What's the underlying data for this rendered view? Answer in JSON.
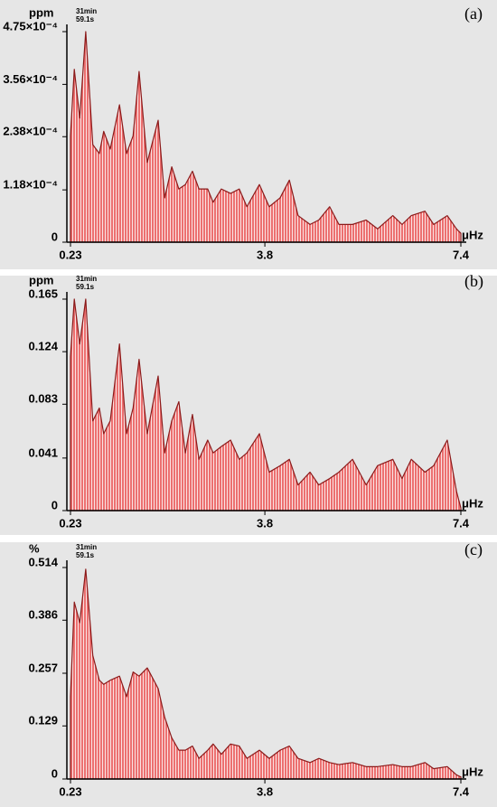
{
  "chart_data": [
    {
      "type": "area",
      "panel_label": "(a)",
      "y_unit": "ppm",
      "x_unit": "μHz",
      "annotation": [
        "31min",
        "59.1s"
      ],
      "color": "#d83a3a",
      "xlim": [
        0.23,
        7.4
      ],
      "xticks": [
        0.23,
        3.8,
        7.4
      ],
      "ylim": [
        0,
        0.000475
      ],
      "yticks": [
        0,
        {
          "value": 0.000118,
          "label": "1.18×10⁻⁴"
        },
        {
          "value": 0.000238,
          "label": "2.38×10⁻⁴"
        },
        {
          "value": 0.000356,
          "label": "3.56×10⁻⁴"
        },
        {
          "value": 0.000475,
          "label": "4.75×10⁻⁴"
        }
      ],
      "x": [
        0.23,
        0.3,
        0.4,
        0.51,
        0.64,
        0.76,
        0.84,
        0.96,
        1.13,
        1.26,
        1.38,
        1.49,
        1.64,
        1.84,
        1.96,
        2.09,
        2.22,
        2.34,
        2.47,
        2.59,
        2.75,
        2.85,
        3.0,
        3.17,
        3.33,
        3.47,
        3.7,
        3.88,
        4.08,
        4.25,
        4.41,
        4.63,
        4.79,
        4.99,
        5.16,
        5.41,
        5.66,
        5.87,
        6.15,
        6.32,
        6.49,
        6.74,
        6.9,
        7.15,
        7.32,
        7.4
      ],
      "values": [
        0.00024,
        0.00039,
        0.00028,
        0.000475,
        0.00022,
        0.0002,
        0.00025,
        0.00021,
        0.00031,
        0.0002,
        0.00024,
        0.000385,
        0.00018,
        0.000275,
        0.0001,
        0.00017,
        0.00012,
        0.00013,
        0.00016,
        0.00012,
        0.00012,
        9e-05,
        0.00012,
        0.00011,
        0.00012,
        8e-05,
        0.00013,
        8e-05,
        0.0001,
        0.00014,
        6e-05,
        4e-05,
        5e-05,
        8e-05,
        4e-05,
        4e-05,
        5e-05,
        3e-05,
        6e-05,
        4e-05,
        6e-05,
        7e-05,
        4e-05,
        6e-05,
        3e-05,
        2e-05
      ]
    },
    {
      "type": "area",
      "panel_label": "(b)",
      "y_unit": "ppm",
      "x_unit": "μHz",
      "annotation": [
        "31min",
        "59.1s"
      ],
      "color": "#d83a3a",
      "xlim": [
        0.23,
        7.4
      ],
      "xticks": [
        0.23,
        3.8,
        7.4
      ],
      "ylim": [
        0,
        0.165
      ],
      "yticks": [
        0,
        0.041,
        0.083,
        0.124,
        0.165
      ],
      "x": [
        0.23,
        0.3,
        0.4,
        0.51,
        0.64,
        0.76,
        0.84,
        0.96,
        1.13,
        1.26,
        1.38,
        1.49,
        1.64,
        1.84,
        1.96,
        2.09,
        2.22,
        2.34,
        2.47,
        2.59,
        2.75,
        2.85,
        3.0,
        3.17,
        3.33,
        3.47,
        3.7,
        3.88,
        4.08,
        4.25,
        4.41,
        4.63,
        4.79,
        4.99,
        5.16,
        5.41,
        5.66,
        5.87,
        6.15,
        6.32,
        6.49,
        6.74,
        6.9,
        7.15,
        7.32,
        7.4
      ],
      "values": [
        0.12,
        0.165,
        0.13,
        0.165,
        0.07,
        0.08,
        0.06,
        0.07,
        0.13,
        0.06,
        0.08,
        0.118,
        0.06,
        0.105,
        0.045,
        0.07,
        0.085,
        0.045,
        0.075,
        0.04,
        0.055,
        0.045,
        0.05,
        0.055,
        0.04,
        0.045,
        0.06,
        0.03,
        0.035,
        0.04,
        0.02,
        0.03,
        0.02,
        0.025,
        0.03,
        0.04,
        0.02,
        0.035,
        0.04,
        0.025,
        0.04,
        0.03,
        0.035,
        0.055,
        0.015,
        0.002
      ]
    },
    {
      "type": "area",
      "panel_label": "(c)",
      "y_unit": "%",
      "x_unit": "μHz",
      "annotation": [
        "31min",
        "59.1s"
      ],
      "color": "#d83a3a",
      "xlim": [
        0.23,
        7.4
      ],
      "xticks": [
        0.23,
        3.8,
        7.4
      ],
      "ylim": [
        0,
        0.514
      ],
      "yticks": [
        0,
        0.129,
        0.257,
        0.386,
        0.514
      ],
      "x": [
        0.23,
        0.3,
        0.4,
        0.51,
        0.64,
        0.76,
        0.84,
        0.96,
        1.13,
        1.26,
        1.38,
        1.49,
        1.64,
        1.84,
        1.96,
        2.09,
        2.22,
        2.34,
        2.47,
        2.59,
        2.75,
        2.85,
        3.0,
        3.17,
        3.33,
        3.47,
        3.7,
        3.88,
        4.08,
        4.25,
        4.41,
        4.63,
        4.79,
        4.99,
        5.16,
        5.41,
        5.66,
        5.87,
        6.15,
        6.32,
        6.49,
        6.74,
        6.9,
        7.15,
        7.32,
        7.4
      ],
      "values": [
        0.2,
        0.43,
        0.38,
        0.51,
        0.3,
        0.24,
        0.23,
        0.24,
        0.25,
        0.2,
        0.26,
        0.25,
        0.27,
        0.22,
        0.15,
        0.1,
        0.07,
        0.07,
        0.08,
        0.05,
        0.07,
        0.085,
        0.06,
        0.085,
        0.08,
        0.05,
        0.07,
        0.05,
        0.07,
        0.08,
        0.05,
        0.04,
        0.05,
        0.04,
        0.035,
        0.04,
        0.03,
        0.03,
        0.035,
        0.03,
        0.03,
        0.04,
        0.025,
        0.03,
        0.01,
        0.005
      ]
    }
  ]
}
